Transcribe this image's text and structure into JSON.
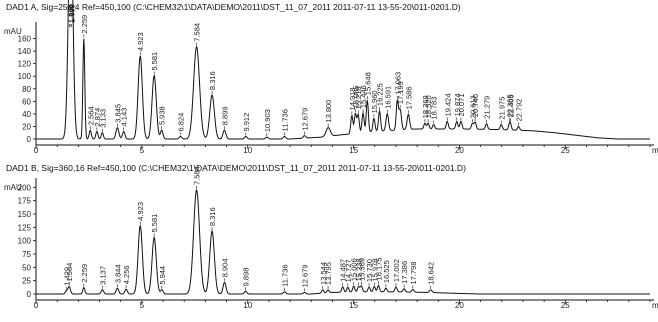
{
  "chart_data": [
    {
      "type": "line",
      "title": "DAD1 A, Sig=254,4 Ref=450,100 (C:\\CHEM32\\1\\DATA\\DEMO\\2011\\DST_11_07_2011 2011-07-11 13-55-20\\011-0201.D)",
      "ylabel": "mAU",
      "xlabel": "",
      "xunit": "m",
      "xlim": [
        0,
        29
      ],
      "ylim": [
        0,
        180
      ],
      "xticks": [
        0,
        5,
        10,
        15,
        20,
        25
      ],
      "yticks": [
        0,
        20,
        40,
        60,
        80,
        100,
        120,
        140,
        160
      ],
      "peaks": [
        {
          "label": "1.588",
          "rt": 1.588,
          "height": 130,
          "width": 0.1
        },
        {
          "label": "1.648",
          "rt": 1.648,
          "height": 128,
          "width": 0.1
        },
        {
          "label": "1.669",
          "rt": 1.669,
          "height": 125,
          "width": 0.1
        },
        {
          "label": "2.259",
          "rt": 2.259,
          "height": 160,
          "width": 0.045
        },
        {
          "label": "2.564",
          "rt": 2.564,
          "height": 14,
          "width": 0.05
        },
        {
          "label": "2.874",
          "rt": 2.874,
          "height": 12,
          "width": 0.05
        },
        {
          "label": "3.133",
          "rt": 3.133,
          "height": 10,
          "width": 0.05
        },
        {
          "label": "3.845",
          "rt": 3.845,
          "height": 18,
          "width": 0.07
        },
        {
          "label": "4.143",
          "rt": 4.143,
          "height": 12,
          "width": 0.06
        },
        {
          "label": "4.923",
          "rt": 4.923,
          "height": 132,
          "width": 0.1
        },
        {
          "label": "5.581",
          "rt": 5.581,
          "height": 101,
          "width": 0.1
        },
        {
          "label": "5.938",
          "rt": 5.938,
          "height": 14,
          "width": 0.06
        },
        {
          "label": "6.824",
          "rt": 6.824,
          "height": 4,
          "width": 0.06
        },
        {
          "label": "7.584",
          "rt": 7.584,
          "height": 147,
          "width": 0.14
        },
        {
          "label": "8.316",
          "rt": 8.316,
          "height": 70,
          "width": 0.11
        },
        {
          "label": "8.899",
          "rt": 8.899,
          "height": 14,
          "width": 0.07
        },
        {
          "label": "9.912",
          "rt": 9.912,
          "height": 4,
          "width": 0.06
        },
        {
          "label": "10.903",
          "rt": 10.903,
          "height": 3,
          "width": 0.06
        },
        {
          "label": "11.736",
          "rt": 11.736,
          "height": 4,
          "width": 0.06
        },
        {
          "label": "12.679",
          "rt": 12.679,
          "height": 4,
          "width": 0.06
        },
        {
          "label": "13.800",
          "rt": 13.8,
          "height": 14,
          "width": 0.1
        },
        {
          "label": "14.918",
          "rt": 14.918,
          "height": 29,
          "width": 0.05
        },
        {
          "label": "15.085",
          "rt": 15.085,
          "height": 31,
          "width": 0.05
        },
        {
          "label": "15.218",
          "rt": 15.218,
          "height": 29,
          "width": 0.05
        },
        {
          "label": "15.446",
          "rt": 15.446,
          "height": 31,
          "width": 0.05
        },
        {
          "label": "15.648",
          "rt": 15.648,
          "height": 51,
          "width": 0.05
        },
        {
          "label": "15.960",
          "rt": 15.96,
          "height": 21,
          "width": 0.05
        },
        {
          "label": "16.225",
          "rt": 16.225,
          "height": 32,
          "width": 0.05
        },
        {
          "label": "16.591",
          "rt": 16.591,
          "height": 27,
          "width": 0.06
        },
        {
          "label": "17.063",
          "rt": 17.063,
          "height": 46,
          "width": 0.05
        },
        {
          "label": "17.199",
          "rt": 17.199,
          "height": 32,
          "width": 0.06
        },
        {
          "label": "17.586",
          "rt": 17.586,
          "height": 24,
          "width": 0.06
        },
        {
          "label": "18.369",
          "rt": 18.369,
          "height": 9,
          "width": 0.05
        },
        {
          "label": "18.520",
          "rt": 18.52,
          "height": 9,
          "width": 0.05
        },
        {
          "label": "18.783",
          "rt": 18.783,
          "height": 7,
          "width": 0.05
        },
        {
          "label": "19.424",
          "rt": 19.424,
          "height": 12,
          "width": 0.05
        },
        {
          "label": "19.874",
          "rt": 19.874,
          "height": 12,
          "width": 0.05
        },
        {
          "label": "20.071",
          "rt": 20.071,
          "height": 12,
          "width": 0.05
        },
        {
          "label": "20.613",
          "rt": 20.613,
          "height": 9,
          "width": 0.05
        },
        {
          "label": "20.740",
          "rt": 20.74,
          "height": 11,
          "width": 0.05
        },
        {
          "label": "21.279",
          "rt": 21.279,
          "height": 9,
          "width": 0.05
        },
        {
          "label": "21.975",
          "rt": 21.975,
          "height": 8,
          "width": 0.05
        },
        {
          "label": "22.365",
          "rt": 22.365,
          "height": 7,
          "width": 0.05
        },
        {
          "label": "22.405",
          "rt": 22.405,
          "height": 7,
          "width": 0.05
        },
        {
          "label": "22.792",
          "rt": 22.792,
          "height": 6,
          "width": 0.05
        }
      ],
      "baseline_hump": [
        [
          0,
          0
        ],
        [
          12,
          0
        ],
        [
          13.5,
          3
        ],
        [
          14.5,
          7
        ],
        [
          16,
          12
        ],
        [
          18,
          16
        ],
        [
          20,
          16
        ],
        [
          22,
          15
        ],
        [
          23.5,
          13
        ],
        [
          24.5,
          10
        ],
        [
          25.5,
          6
        ],
        [
          26.5,
          2
        ],
        [
          27.5,
          0
        ],
        [
          29,
          0
        ]
      ]
    },
    {
      "type": "line",
      "title": "DAD1 B, Sig=360,16 Ref=450,100 (C:\\CHEM32\\1\\DATA\\DEMO\\2011\\DST_11_07_2011 2011-07-11 13-55-20\\011-0201.D)",
      "ylabel": "mAU",
      "xlabel": "",
      "xunit": "m",
      "xlim": [
        0,
        29
      ],
      "ylim": [
        0,
        210
      ],
      "xticks": [
        0,
        5,
        10,
        15,
        20,
        25
      ],
      "yticks": [
        0,
        25,
        50,
        75,
        100,
        125,
        150,
        175,
        200
      ],
      "peaks": [
        {
          "label": "1.429",
          "rt": 1.429,
          "height": 5,
          "width": 0.05
        },
        {
          "label": "1.564",
          "rt": 1.564,
          "height": 14,
          "width": 0.06
        },
        {
          "label": "2.259",
          "rt": 2.259,
          "height": 12,
          "width": 0.05
        },
        {
          "label": "3.137",
          "rt": 3.137,
          "height": 8,
          "width": 0.06
        },
        {
          "label": "3.844",
          "rt": 3.844,
          "height": 11,
          "width": 0.06
        },
        {
          "label": "4.256",
          "rt": 4.256,
          "height": 9,
          "width": 0.06
        },
        {
          "label": "4.923",
          "rt": 4.923,
          "height": 128,
          "width": 0.1
        },
        {
          "label": "5.581",
          "rt": 5.581,
          "height": 106,
          "width": 0.1
        },
        {
          "label": "5.944",
          "rt": 5.944,
          "height": 8,
          "width": 0.06
        },
        {
          "label": "7.584",
          "rt": 7.584,
          "height": 195,
          "width": 0.14
        },
        {
          "label": "8.316",
          "rt": 8.316,
          "height": 118,
          "width": 0.11
        },
        {
          "label": "8.904",
          "rt": 8.904,
          "height": 22,
          "width": 0.07
        },
        {
          "label": "9.898",
          "rt": 9.898,
          "height": 5,
          "width": 0.06
        },
        {
          "label": "11.736",
          "rt": 11.736,
          "height": 4,
          "width": 0.06
        },
        {
          "label": "12.679",
          "rt": 12.679,
          "height": 3,
          "width": 0.06
        },
        {
          "label": "13.544",
          "rt": 13.544,
          "height": 6,
          "width": 0.05
        },
        {
          "label": "13.795",
          "rt": 13.795,
          "height": 5,
          "width": 0.05
        },
        {
          "label": "14.487",
          "rt": 14.487,
          "height": 10,
          "width": 0.05
        },
        {
          "label": "14.727",
          "rt": 14.727,
          "height": 9,
          "width": 0.05
        },
        {
          "label": "15.006",
          "rt": 15.006,
          "height": 11,
          "width": 0.05
        },
        {
          "label": "15.238",
          "rt": 15.238,
          "height": 10,
          "width": 0.05
        },
        {
          "label": "15.369",
          "rt": 15.369,
          "height": 11,
          "width": 0.05
        },
        {
          "label": "15.730",
          "rt": 15.73,
          "height": 9,
          "width": 0.05
        },
        {
          "label": "15.978",
          "rt": 15.978,
          "height": 10,
          "width": 0.05
        },
        {
          "label": "16.175",
          "rt": 16.175,
          "height": 12,
          "width": 0.05
        },
        {
          "label": "16.525",
          "rt": 16.525,
          "height": 7,
          "width": 0.05
        },
        {
          "label": "17.002",
          "rt": 17.002,
          "height": 9,
          "width": 0.05
        },
        {
          "label": "17.386",
          "rt": 17.386,
          "height": 6,
          "width": 0.05
        },
        {
          "label": "17.798",
          "rt": 17.798,
          "height": 5,
          "width": 0.05
        },
        {
          "label": "18.642",
          "rt": 18.642,
          "height": 5,
          "width": 0.06
        }
      ],
      "baseline_hump": [
        [
          0,
          0
        ],
        [
          13,
          0
        ],
        [
          14,
          3
        ],
        [
          15.5,
          4
        ],
        [
          17,
          4
        ],
        [
          18.5,
          3
        ],
        [
          20,
          1
        ],
        [
          21,
          0
        ],
        [
          29,
          0
        ]
      ]
    }
  ],
  "style": {
    "trace_color": "#111111",
    "axis_color": "#111111",
    "label_color": "#222222"
  }
}
